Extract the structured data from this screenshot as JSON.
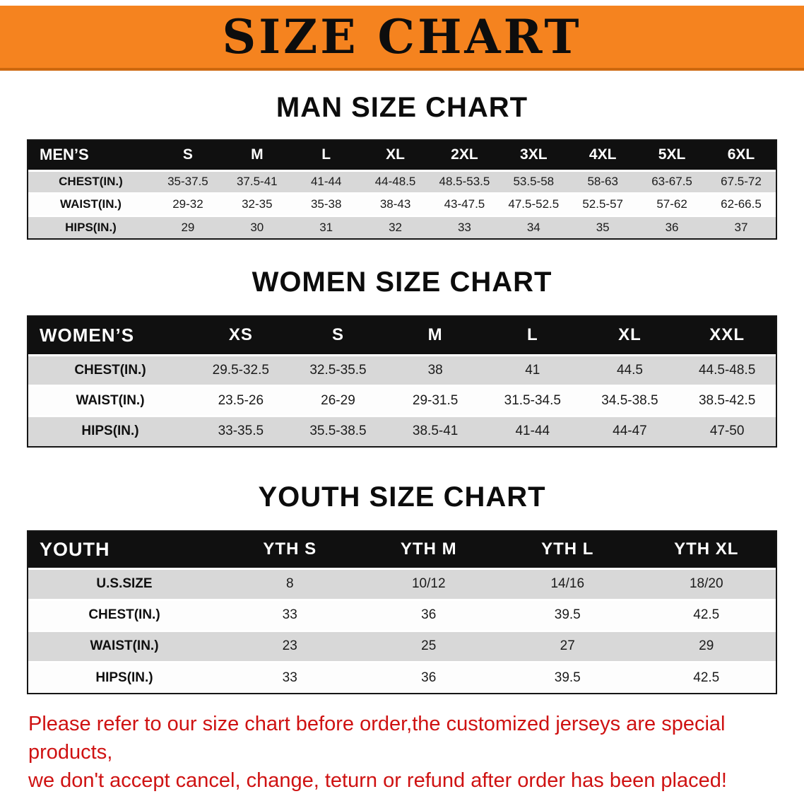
{
  "banner": {
    "title": "SIZE CHART",
    "bg_color": "#f5831f"
  },
  "men": {
    "heading": "MAN SIZE CHART",
    "label": "MEN’S",
    "columns": [
      "S",
      "M",
      "L",
      "XL",
      "2XL",
      "3XL",
      "4XL",
      "5XL",
      "6XL"
    ],
    "rows": [
      {
        "label": "CHEST(IN.)",
        "values": [
          "35-37.5",
          "37.5-41",
          "41-44",
          "44-48.5",
          "48.5-53.5",
          "53.5-58",
          "58-63",
          "63-67.5",
          "67.5-72"
        ]
      },
      {
        "label": "WAIST(IN.)",
        "values": [
          "29-32",
          "32-35",
          "35-38",
          "38-43",
          "43-47.5",
          "47.5-52.5",
          "52.5-57",
          "57-62",
          "62-66.5"
        ]
      },
      {
        "label": "HIPS(IN.)",
        "values": [
          "29",
          "30",
          "31",
          "32",
          "33",
          "34",
          "35",
          "36",
          "37"
        ]
      }
    ]
  },
  "women": {
    "heading": "WOMEN SIZE CHART",
    "label": "WOMEN’S",
    "columns": [
      "XS",
      "S",
      "M",
      "L",
      "XL",
      "XXL"
    ],
    "rows": [
      {
        "label": "CHEST(IN.)",
        "values": [
          "29.5-32.5",
          "32.5-35.5",
          "38",
          "41",
          "44.5",
          "44.5-48.5"
        ]
      },
      {
        "label": "WAIST(IN.)",
        "values": [
          "23.5-26",
          "26-29",
          "29-31.5",
          "31.5-34.5",
          "34.5-38.5",
          "38.5-42.5"
        ]
      },
      {
        "label": "HIPS(IN.)",
        "values": [
          "33-35.5",
          "35.5-38.5",
          "38.5-41",
          "41-44",
          "44-47",
          "47-50"
        ]
      }
    ]
  },
  "youth": {
    "heading": "YOUTH SIZE CHART",
    "label": "YOUTH",
    "columns": [
      "YTH S",
      "YTH M",
      "YTH L",
      "YTH XL"
    ],
    "rows": [
      {
        "label": "U.S.SIZE",
        "values": [
          "8",
          "10/12",
          "14/16",
          "18/20"
        ]
      },
      {
        "label": "CHEST(IN.)",
        "values": [
          "33",
          "36",
          "39.5",
          "42.5"
        ]
      },
      {
        "label": "WAIST(IN.)",
        "values": [
          "23",
          "25",
          "27",
          "29"
        ]
      },
      {
        "label": "HIPS(IN.)",
        "values": [
          "33",
          "36",
          "39.5",
          "42.5"
        ]
      }
    ]
  },
  "disclaimer": {
    "line1": "Please refer to our size chart before order,the customized jerseys are special products,",
    "line2": "we don't accept cancel, change, teturn or refund after order has been placed!",
    "color": "#cf1212"
  }
}
